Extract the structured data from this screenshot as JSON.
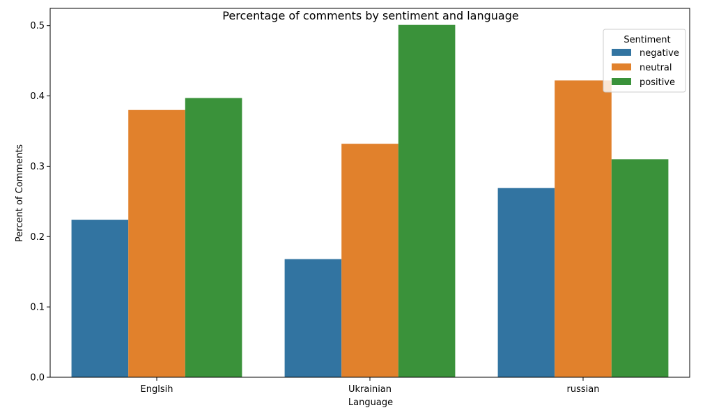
{
  "chart_data": {
    "type": "bar",
    "title": "Percentage of comments by sentiment and language",
    "xlabel": "Language",
    "ylabel": "Percent of Comments",
    "categories": [
      "Englsih",
      "Ukrainian",
      "russian"
    ],
    "series": [
      {
        "name": "negative",
        "values": [
          0.224,
          0.168,
          0.269
        ],
        "color": "#3274a1"
      },
      {
        "name": "neutral",
        "values": [
          0.38,
          0.332,
          0.422
        ],
        "color": "#e1812c"
      },
      {
        "name": "positive",
        "values": [
          0.397,
          0.501,
          0.31
        ],
        "color": "#3a923a"
      }
    ],
    "ylim": [
      0,
      0.5245
    ],
    "yticks": [
      0.0,
      0.1,
      0.2,
      0.3,
      0.4,
      0.5
    ],
    "ytick_labels": [
      "0.0",
      "0.1",
      "0.2",
      "0.3",
      "0.4",
      "0.5"
    ],
    "grid": false,
    "legend": {
      "title": "Sentiment",
      "placement": "top-right"
    }
  }
}
